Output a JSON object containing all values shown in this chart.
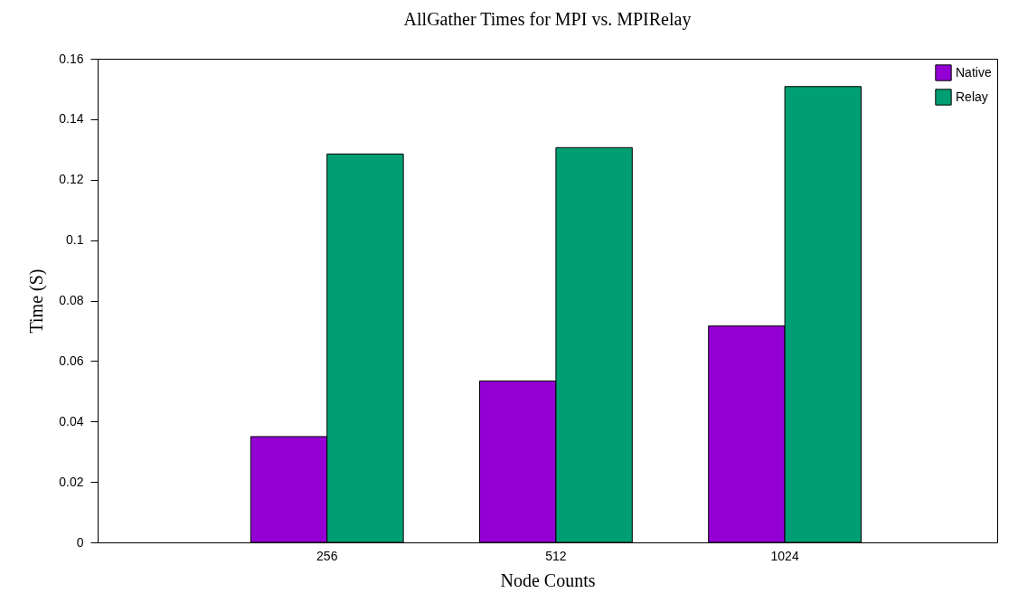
{
  "chart_data": {
    "type": "bar",
    "title": "AllGather Times for MPI vs. MPIRelay",
    "xlabel": "Node Counts",
    "ylabel": "Time (S)",
    "categories": [
      "256",
      "512",
      "1024"
    ],
    "series": [
      {
        "name": "Native",
        "color": "#9400d3",
        "values": [
          0.035,
          0.0534,
          0.0716
        ]
      },
      {
        "name": "Relay",
        "color": "#009e73",
        "values": [
          0.1285,
          0.1306,
          0.1508
        ]
      }
    ],
    "ylim": [
      0,
      0.16
    ],
    "yticks": [
      0,
      0.02,
      0.04,
      0.06,
      0.08,
      0.1,
      0.12,
      0.14,
      0.16
    ],
    "grid": false,
    "legend": "top right"
  }
}
